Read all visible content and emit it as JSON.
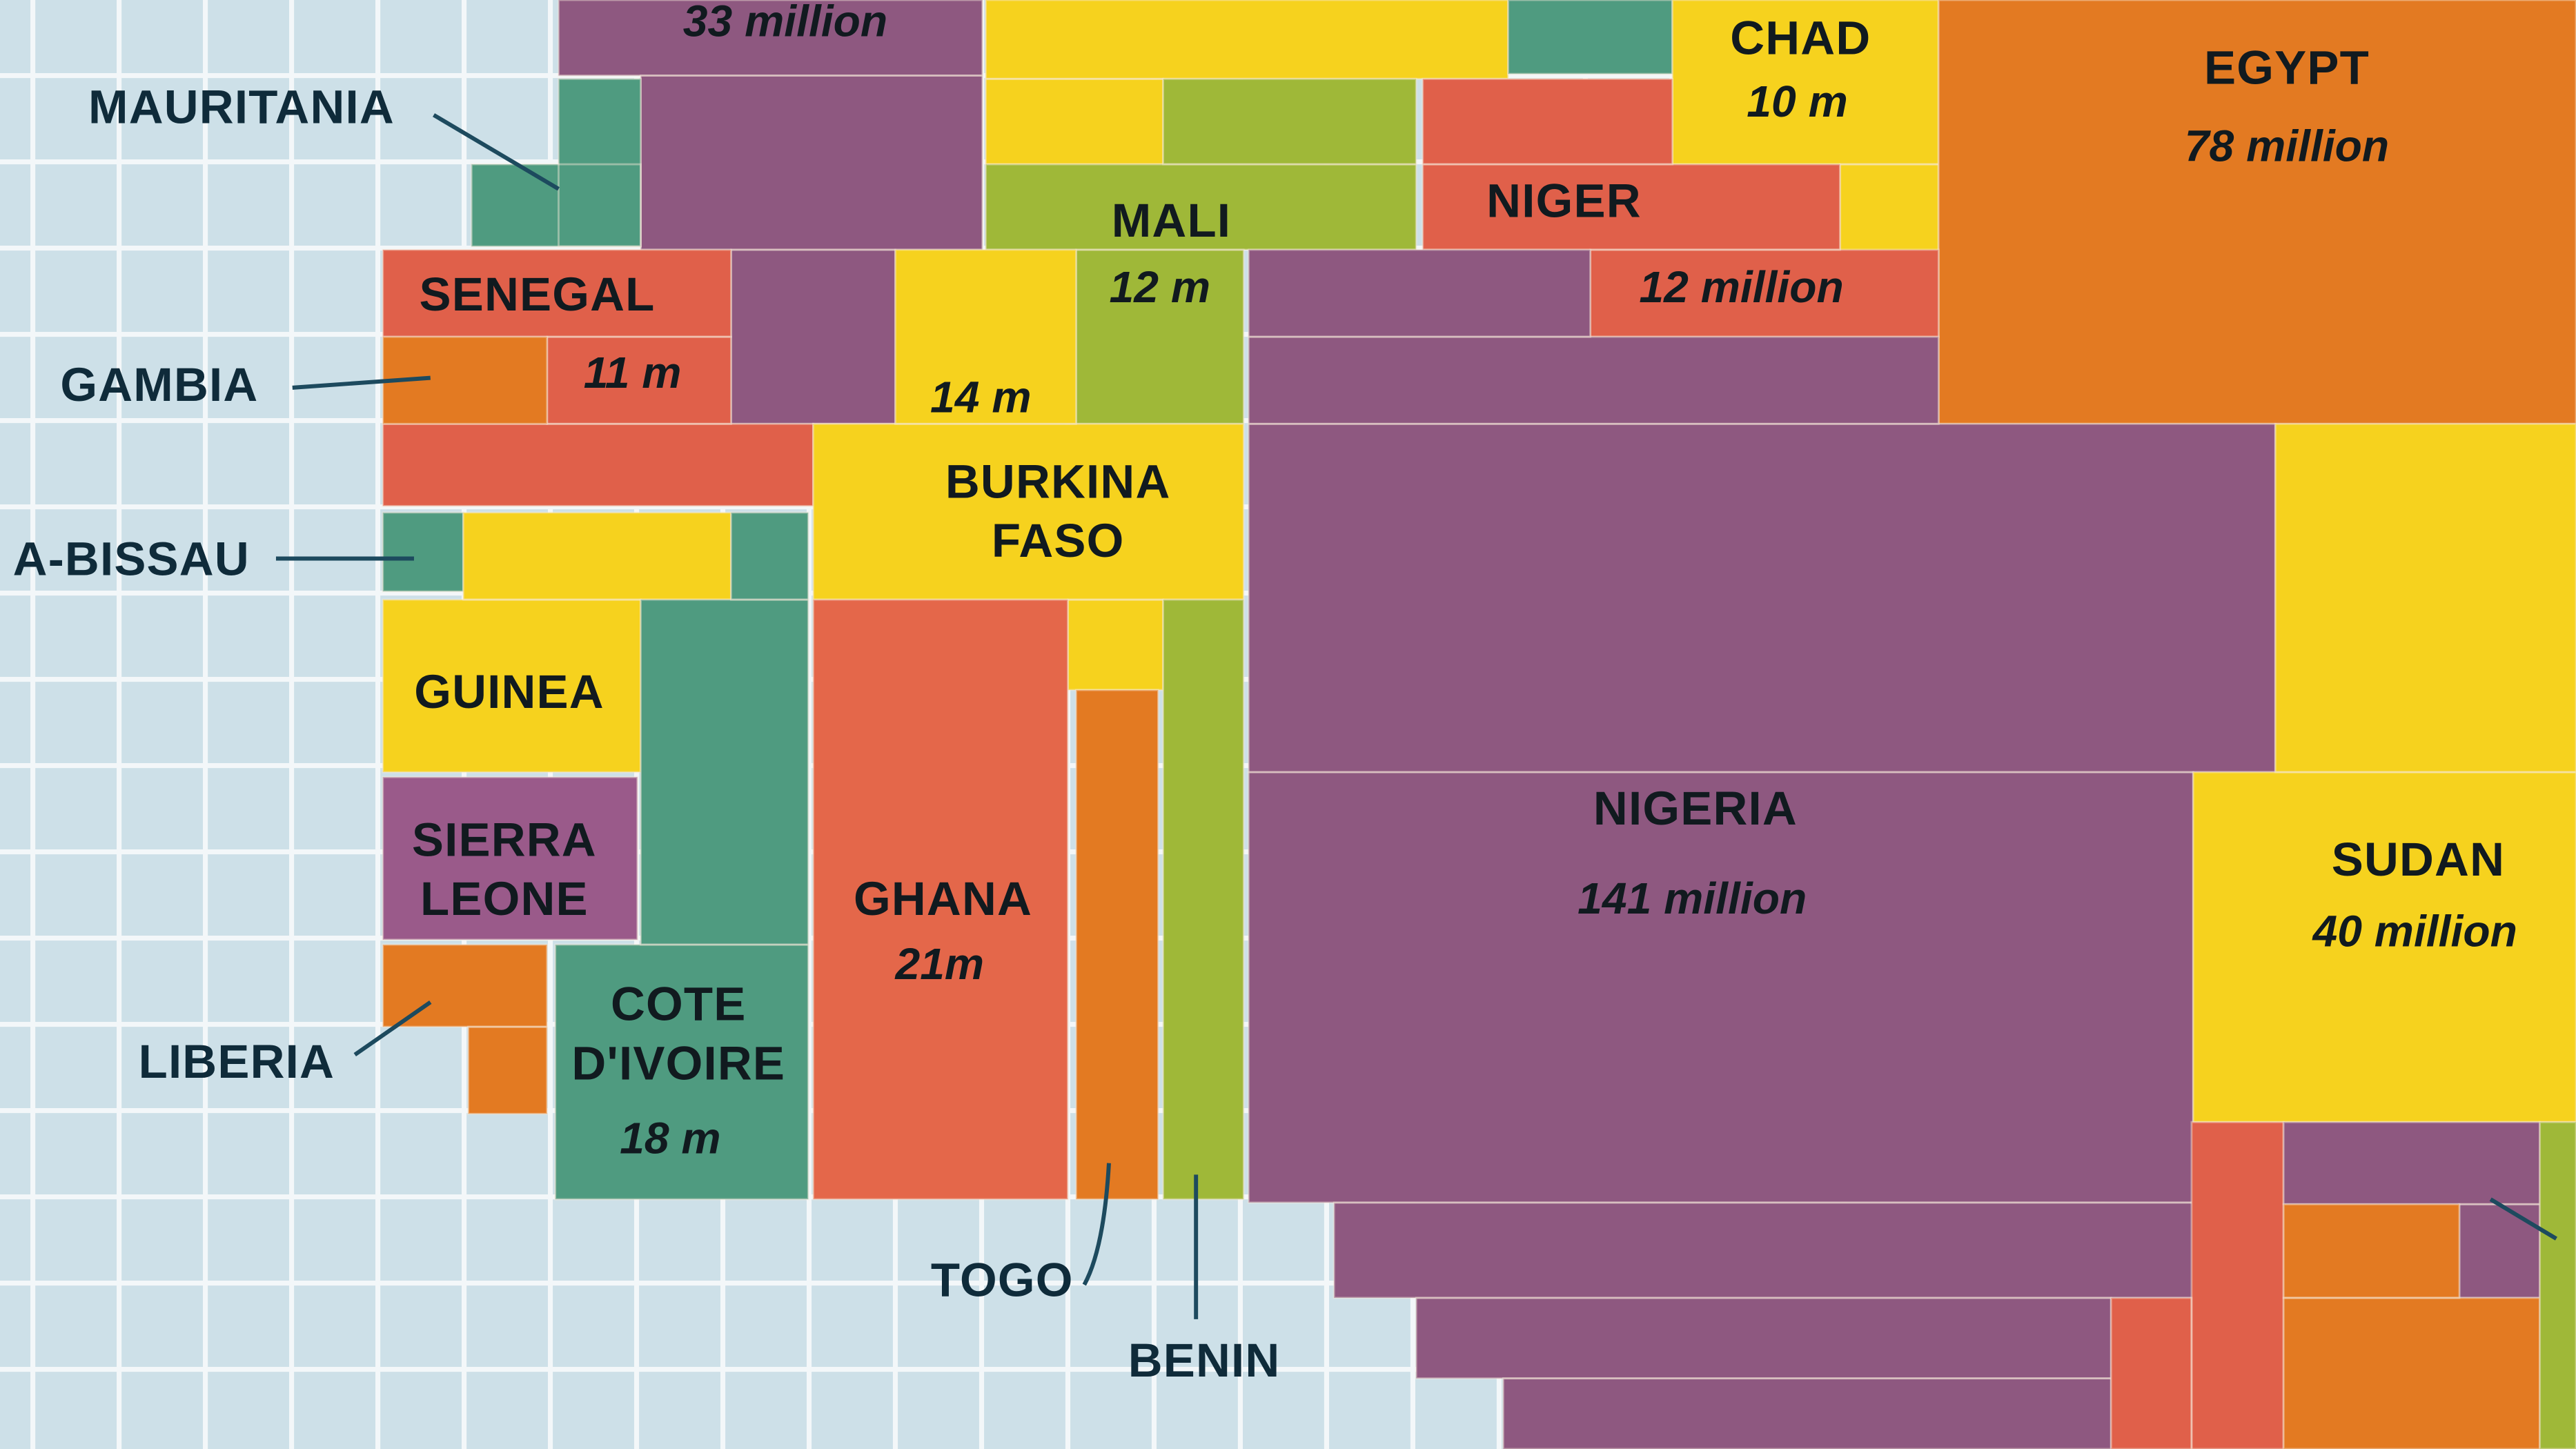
{
  "map": {
    "ocean_color": "#cde0e8",
    "grid_color": "#f3f7f9",
    "countries": {
      "morocco": {
        "population": "33 million",
        "color": "#8e5880"
      },
      "algeria": {
        "color": "#f6d21e"
      },
      "tunisia_libya": {
        "color": "#4f9b80"
      },
      "mauritania": {
        "name": "MAURITANIA",
        "color": "#4f9b80"
      },
      "senegal": {
        "name": "SENEGAL",
        "population": "11 m",
        "color": "#e0604a"
      },
      "gambia": {
        "name": "GAMBIA",
        "color": "#e37a22"
      },
      "guinea_bissau": {
        "name": "A-BISSAU",
        "color": "#4f9b80"
      },
      "guinea": {
        "name": "GUINEA",
        "color": "#f6d21e"
      },
      "sierra_leone": {
        "name_line1": "SIERRA",
        "name_line2": "LEONE",
        "color": "#9a5a8a"
      },
      "liberia": {
        "name": "LIBERIA",
        "color": "#e37a22"
      },
      "cote_divoire": {
        "name_line1": "COTE",
        "name_line2": "D'IVOIRE",
        "population": "18 m",
        "color": "#4f9b80"
      },
      "mali": {
        "name": "MALI",
        "population": "12 m",
        "color": "#9fb838"
      },
      "burkina_faso": {
        "name_line1": "BURKINA",
        "name_line2": "FASO",
        "population": "14 m",
        "color": "#f6d21e"
      },
      "ghana": {
        "name": "GHANA",
        "population": "21m",
        "color": "#e4674a"
      },
      "togo": {
        "name": "TOGO",
        "color": "#e37a22"
      },
      "benin": {
        "name": "BENIN",
        "color": "#9fb838"
      },
      "niger": {
        "name": "NIGER",
        "population": "12 million",
        "color": "#e0604a"
      },
      "chad": {
        "name": "CHAD",
        "population": "10 m",
        "color": "#f6d21e"
      },
      "egypt": {
        "name": "EGYPT",
        "population": "78 million",
        "color": "#e37a22"
      },
      "nigeria": {
        "name": "NIGERIA",
        "population": "141 million",
        "color": "#8e5880"
      },
      "sudan": {
        "name": "SUDAN",
        "population": "40 million",
        "color": "#f6d21e"
      },
      "east_red": {
        "color": "#e0604a"
      },
      "east_purple": {
        "color": "#8e5880"
      },
      "east_orange": {
        "color": "#e37a22"
      },
      "east_green": {
        "color": "#9fb838"
      }
    }
  }
}
